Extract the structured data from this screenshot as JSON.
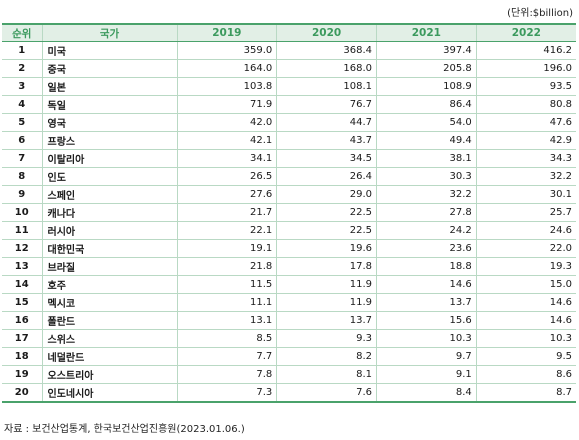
{
  "unit_label": "(단위:$billion)",
  "header": {
    "rank": "순위",
    "country": "국가",
    "years": [
      "2019",
      "2020",
      "2021",
      "2022"
    ]
  },
  "rows": [
    {
      "rank": "1",
      "country": "미국",
      "values": [
        "359.0",
        "368.4",
        "397.4",
        "416.2"
      ]
    },
    {
      "rank": "2",
      "country": "중국",
      "values": [
        "164.0",
        "168.0",
        "205.8",
        "196.0"
      ]
    },
    {
      "rank": "3",
      "country": "일본",
      "values": [
        "103.8",
        "108.1",
        "108.9",
        "93.5"
      ]
    },
    {
      "rank": "4",
      "country": "독일",
      "values": [
        "71.9",
        "76.7",
        "86.4",
        "80.8"
      ]
    },
    {
      "rank": "5",
      "country": "영국",
      "values": [
        "42.0",
        "44.7",
        "54.0",
        "47.6"
      ]
    },
    {
      "rank": "6",
      "country": "프랑스",
      "values": [
        "42.1",
        "43.7",
        "49.4",
        "42.9"
      ]
    },
    {
      "rank": "7",
      "country": "이탈리아",
      "values": [
        "34.1",
        "34.5",
        "38.1",
        "34.3"
      ]
    },
    {
      "rank": "8",
      "country": "인도",
      "values": [
        "26.5",
        "26.4",
        "30.3",
        "32.2"
      ]
    },
    {
      "rank": "9",
      "country": "스페인",
      "values": [
        "27.6",
        "29.0",
        "32.2",
        "30.1"
      ]
    },
    {
      "rank": "10",
      "country": "캐나다",
      "values": [
        "21.7",
        "22.5",
        "27.8",
        "25.7"
      ]
    },
    {
      "rank": "11",
      "country": "러시아",
      "values": [
        "22.1",
        "22.5",
        "24.2",
        "24.6"
      ]
    },
    {
      "rank": "12",
      "country": "대한민국",
      "values": [
        "19.1",
        "19.6",
        "23.6",
        "22.0"
      ]
    },
    {
      "rank": "13",
      "country": "브라질",
      "values": [
        "21.8",
        "17.8",
        "18.8",
        "19.3"
      ]
    },
    {
      "rank": "14",
      "country": "호주",
      "values": [
        "11.5",
        "11.9",
        "14.6",
        "15.0"
      ]
    },
    {
      "rank": "15",
      "country": "멕시코",
      "values": [
        "11.1",
        "11.9",
        "13.7",
        "14.6"
      ]
    },
    {
      "rank": "16",
      "country": "폴란드",
      "values": [
        "13.1",
        "13.7",
        "15.6",
        "14.6"
      ]
    },
    {
      "rank": "17",
      "country": "스위스",
      "values": [
        "8.5",
        "9.3",
        "10.3",
        "10.3"
      ]
    },
    {
      "rank": "18",
      "country": "네덜란드",
      "values": [
        "7.7",
        "8.2",
        "9.7",
        "9.5"
      ]
    },
    {
      "rank": "19",
      "country": "오스트리아",
      "values": [
        "7.8",
        "8.1",
        "9.1",
        "8.6"
      ]
    },
    {
      "rank": "20",
      "country": "인도네시아",
      "values": [
        "7.3",
        "7.6",
        "8.4",
        "8.7"
      ]
    }
  ],
  "source": "자료 : 보건산업통계, 한국보건산업진흥원(2023.01.06.)",
  "colors": {
    "accent": "#4aa26b",
    "header_bg": "#e2efe6",
    "header_text": "#3c9a5e",
    "grid_line": "#b9d9c4"
  }
}
